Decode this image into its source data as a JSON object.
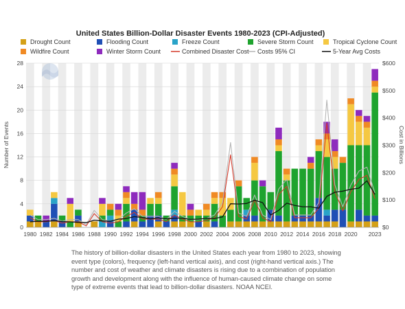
{
  "chart_data": {
    "type": "bar",
    "title": "United States Billion-Dollar Disaster Events 1980-2023 (CPI-Adjusted)",
    "ylabel_left": "Number of Events",
    "ylabel_right": "Cost in Billions",
    "ylim_left": [
      0,
      28
    ],
    "ylim_right": [
      0,
      600
    ],
    "left_ticks": [
      "0",
      "4",
      "8",
      "12",
      "16",
      "20",
      "24",
      "28"
    ],
    "right_ticks": [
      "$0",
      "$100",
      "$200",
      "$300",
      "$400",
      "$500",
      "$600"
    ],
    "x_ticks": [
      "1980",
      "1982",
      "1984",
      "1986",
      "1988",
      "1990",
      "1992",
      "1994",
      "1996",
      "1998",
      "2000",
      "2002",
      "2004",
      "2006",
      "2008",
      "2010",
      "2012",
      "2014",
      "2016",
      "2018",
      "2020",
      "2023"
    ],
    "years": [
      1980,
      1981,
      1982,
      1983,
      1984,
      1985,
      1986,
      1987,
      1988,
      1989,
      1990,
      1991,
      1992,
      1993,
      1994,
      1995,
      1996,
      1997,
      1998,
      1999,
      2000,
      2001,
      2002,
      2003,
      2004,
      2005,
      2006,
      2007,
      2008,
      2009,
      2010,
      2011,
      2012,
      2013,
      2014,
      2015,
      2016,
      2017,
      2018,
      2019,
      2020,
      2021,
      2022,
      2023
    ],
    "legend_position": "top",
    "grid": true,
    "stack_order": [
      "drought",
      "flooding",
      "freeze",
      "severe",
      "tropical",
      "wildfire",
      "winter"
    ],
    "bar_series": [
      {
        "key": "drought",
        "name": "Drought Count",
        "color": "#d4a017",
        "values": [
          1,
          1,
          0,
          1,
          0,
          0,
          1,
          0,
          1,
          0,
          0,
          0,
          0,
          1,
          0,
          0,
          1,
          0,
          1,
          1,
          1,
          0,
          1,
          0,
          0,
          1,
          1,
          1,
          1,
          1,
          1,
          1,
          1,
          1,
          1,
          1,
          1,
          1,
          1,
          0,
          1,
          1,
          1,
          1
        ]
      },
      {
        "key": "flooding",
        "name": "Flooding Count",
        "color": "#1f4fb5",
        "values": [
          1,
          0,
          1,
          3,
          1,
          0,
          1,
          0,
          0,
          0,
          1,
          0,
          1,
          2,
          1,
          2,
          1,
          1,
          1,
          0,
          0,
          1,
          0,
          1,
          0,
          0,
          0,
          1,
          1,
          0,
          2,
          1,
          0,
          1,
          1,
          1,
          4,
          1,
          2,
          3,
          0,
          2,
          1,
          1
        ]
      },
      {
        "key": "freeze",
        "name": "Freeze Count",
        "color": "#29a3c8",
        "values": [
          0,
          0,
          0,
          1,
          0,
          0,
          0,
          0,
          0,
          1,
          1,
          0,
          0,
          0,
          0,
          0,
          0,
          0,
          1,
          0,
          0,
          0,
          0,
          0,
          0,
          0,
          0,
          1,
          0,
          0,
          0,
          0,
          0,
          0,
          0,
          0,
          0,
          1,
          0,
          0,
          0,
          0,
          0,
          0
        ]
      },
      {
        "key": "severe",
        "name": "Severe Storm Count",
        "color": "#1fa32e",
        "values": [
          0,
          1,
          0,
          0,
          1,
          1,
          1,
          0,
          0,
          1,
          1,
          1,
          3,
          0,
          1,
          2,
          2,
          1,
          4,
          1,
          1,
          1,
          1,
          3,
          2,
          2,
          6,
          2,
          6,
          6,
          3,
          11,
          7,
          8,
          8,
          8,
          8,
          9,
          7,
          8,
          13,
          11,
          12,
          21
        ]
      },
      {
        "key": "tropical",
        "name": "Tropical Cyclone Count",
        "color": "#f5c842",
        "values": [
          1,
          0,
          0,
          1,
          0,
          3,
          0,
          0,
          0,
          2,
          0,
          1,
          1,
          0,
          0,
          1,
          1,
          0,
          2,
          4,
          0,
          1,
          1,
          1,
          3,
          2,
          0,
          0,
          3,
          0,
          0,
          1,
          1,
          0,
          0,
          0,
          1,
          3,
          2,
          0,
          7,
          4,
          3,
          1
        ]
      },
      {
        "key": "wildfire",
        "name": "Wildfire Count",
        "color": "#f08a24",
        "values": [
          0,
          0,
          0,
          0,
          0,
          0,
          0,
          0,
          0,
          0,
          1,
          1,
          1,
          1,
          1,
          0,
          1,
          0,
          1,
          0,
          1,
          0,
          1,
          1,
          1,
          0,
          1,
          0,
          1,
          0,
          0,
          1,
          1,
          0,
          0,
          1,
          1,
          1,
          1,
          1,
          1,
          1,
          1,
          1
        ]
      },
      {
        "key": "winter",
        "name": "Winter Storm Count",
        "color": "#8e2bbd",
        "values": [
          0,
          0,
          1,
          0,
          0,
          1,
          0,
          0,
          0,
          1,
          0,
          1,
          1,
          2,
          3,
          0,
          0,
          0,
          1,
          0,
          1,
          0,
          0,
          0,
          0,
          0,
          0,
          0,
          0,
          1,
          0,
          2,
          0,
          0,
          0,
          1,
          0,
          2,
          2,
          0,
          0,
          1,
          1,
          2
        ]
      }
    ],
    "line_series": [
      {
        "key": "combined",
        "name": "Combined Disaster Cost",
        "color": "#d43a2a",
        "values": [
          35,
          20,
          20,
          25,
          15,
          20,
          20,
          5,
          50,
          20,
          15,
          20,
          40,
          55,
          30,
          30,
          30,
          20,
          45,
          30,
          20,
          20,
          25,
          35,
          75,
          265,
          40,
          30,
          100,
          35,
          20,
          120,
          150,
          35,
          35,
          35,
          70,
          380,
          130,
          60,
          130,
          175,
          190,
          105
        ]
      },
      {
        "key": "ci",
        "name": "Costs 95% CI",
        "color": "#b5b5b5",
        "values": [
          45,
          28,
          28,
          33,
          22,
          28,
          28,
          10,
          62,
          28,
          22,
          28,
          52,
          68,
          40,
          40,
          40,
          28,
          58,
          40,
          28,
          28,
          33,
          45,
          90,
          310,
          52,
          40,
          118,
          45,
          28,
          140,
          175,
          45,
          45,
          45,
          90,
          465,
          155,
          75,
          155,
          205,
          220,
          125
        ]
      },
      {
        "key": "avg5",
        "name": "5-Year Avg Costs",
        "color": "#111111",
        "values": [
          20,
          22,
          22,
          24,
          21,
          20,
          18,
          17,
          26,
          23,
          22,
          30,
          32,
          39,
          36,
          31,
          35,
          31,
          33,
          33,
          29,
          30,
          33,
          32,
          38,
          86,
          85,
          87,
          99,
          90,
          45,
          62,
          88,
          80,
          75,
          75,
          70,
          113,
          128,
          132,
          139,
          143,
          170,
          120
        ]
      }
    ]
  },
  "caption": "The history of billion-dollar disasters in the United States each year from 1980 to 2023, showing event type (colors), frequency (left-hand vertical axis), and cost (right-hand vertical axis.) The number and cost of weather and climate disasters is rising due to a combination of population growth and development along with the influence of human-caused climate change on some type of extreme events that lead to billion-dollar disasters. NOAA NCEI.",
  "logo_text": "NOAA"
}
